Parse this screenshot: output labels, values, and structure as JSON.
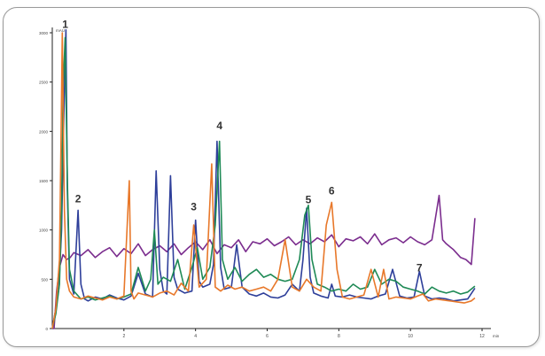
{
  "chart_data": {
    "type": "line",
    "title": "",
    "xlabel": "",
    "ylabel": "",
    "x_unit": "min",
    "y_unit": "mAU",
    "xlim": [
      0,
      12
    ],
    "ylim": [
      0,
      3000
    ],
    "x_ticks": [
      "2",
      "4",
      "6",
      "8",
      "10",
      "12"
    ],
    "x_tick_values": [
      2,
      4,
      6,
      8,
      10,
      12
    ],
    "y_ticks": [
      "0",
      "500",
      "1000",
      "1500",
      "2000",
      "2500",
      "3000"
    ],
    "y_tick_values": [
      0,
      500,
      1000,
      1500,
      2000,
      2500,
      3000
    ],
    "grid": false,
    "legend": "none",
    "peak_labels": [
      {
        "text": "1",
        "x": 0.36,
        "y": 3050
      },
      {
        "text": "2",
        "x": 0.72,
        "y": 1280
      },
      {
        "text": "3",
        "x": 3.95,
        "y": 1200
      },
      {
        "text": "4",
        "x": 4.67,
        "y": 2020
      },
      {
        "text": "5",
        "x": 7.15,
        "y": 1270
      },
      {
        "text": "6",
        "x": 7.8,
        "y": 1360
      },
      {
        "text": "7",
        "x": 10.25,
        "y": 580
      }
    ],
    "series": [
      {
        "color": "#7b2d8e",
        "x": [
          0.0,
          0.05,
          0.12,
          0.2,
          0.3,
          0.4,
          0.5,
          0.6,
          0.8,
          1.0,
          1.2,
          1.4,
          1.6,
          1.8,
          2.0,
          2.2,
          2.4,
          2.6,
          2.8,
          3.0,
          3.2,
          3.4,
          3.6,
          3.8,
          4.0,
          4.2,
          4.4,
          4.6,
          4.8,
          5.0,
          5.2,
          5.4,
          5.6,
          5.8,
          6.0,
          6.2,
          6.4,
          6.6,
          6.8,
          7.0,
          7.2,
          7.4,
          7.6,
          7.8,
          8.0,
          8.2,
          8.4,
          8.6,
          8.8,
          9.0,
          9.2,
          9.4,
          9.6,
          9.8,
          10.0,
          10.2,
          10.4,
          10.6,
          10.8,
          10.9,
          11.0,
          11.2,
          11.4,
          11.55,
          11.7,
          11.8
        ],
        "y": [
          0,
          0,
          380,
          620,
          750,
          700,
          720,
          770,
          740,
          800,
          720,
          780,
          820,
          730,
          810,
          760,
          860,
          740,
          800,
          840,
          780,
          860,
          750,
          820,
          880,
          800,
          900,
          760,
          850,
          820,
          900,
          780,
          880,
          860,
          910,
          840,
          880,
          930,
          850,
          900,
          860,
          920,
          880,
          950,
          830,
          910,
          890,
          930,
          860,
          960,
          850,
          900,
          920,
          870,
          930,
          880,
          850,
          900,
          1350,
          900,
          860,
          800,
          720,
          700,
          650,
          1120
        ]
      },
      {
        "color": "#2e3f9a",
        "x": [
          0.0,
          0.1,
          0.18,
          0.26,
          0.32,
          0.38,
          0.42,
          0.48,
          0.6,
          0.72,
          0.8,
          0.9,
          1.0,
          1.2,
          1.4,
          1.6,
          1.8,
          2.0,
          2.2,
          2.4,
          2.6,
          2.8,
          2.9,
          3.0,
          3.1,
          3.2,
          3.3,
          3.4,
          3.5,
          3.7,
          3.9,
          4.0,
          4.1,
          4.2,
          4.4,
          4.5,
          4.6,
          4.7,
          4.8,
          5.0,
          5.15,
          5.3,
          5.5,
          5.7,
          5.9,
          6.1,
          6.3,
          6.5,
          6.7,
          6.9,
          7.0,
          7.1,
          7.2,
          7.3,
          7.5,
          7.7,
          7.8,
          7.9,
          8.1,
          8.3,
          8.5,
          8.7,
          8.9,
          9.1,
          9.3,
          9.5,
          9.7,
          9.9,
          10.1,
          10.25,
          10.4,
          10.6,
          10.8,
          11.0,
          11.2,
          11.4,
          11.6,
          11.8
        ],
        "y": [
          0,
          200,
          400,
          1000,
          2100,
          3030,
          1400,
          500,
          350,
          1200,
          450,
          300,
          280,
          320,
          300,
          340,
          310,
          290,
          330,
          560,
          350,
          320,
          1600,
          600,
          380,
          350,
          1550,
          520,
          400,
          360,
          380,
          1100,
          480,
          420,
          450,
          650,
          1900,
          620,
          400,
          420,
          850,
          420,
          350,
          330,
          360,
          320,
          310,
          340,
          450,
          380,
          700,
          1220,
          520,
          360,
          330,
          310,
          450,
          330,
          320,
          340,
          320,
          310,
          300,
          330,
          350,
          600,
          330,
          310,
          320,
          580,
          330,
          300,
          310,
          300,
          280,
          290,
          300,
          410
        ]
      },
      {
        "color": "#1f8a56",
        "x": [
          0.0,
          0.1,
          0.2,
          0.26,
          0.3,
          0.36,
          0.42,
          0.48,
          0.6,
          0.8,
          1.0,
          1.2,
          1.4,
          1.6,
          1.8,
          2.0,
          2.2,
          2.4,
          2.6,
          2.75,
          2.85,
          2.95,
          3.1,
          3.3,
          3.5,
          3.7,
          3.9,
          4.05,
          4.2,
          4.4,
          4.55,
          4.67,
          4.75,
          4.9,
          5.1,
          5.3,
          5.5,
          5.7,
          5.9,
          6.1,
          6.3,
          6.5,
          6.7,
          6.9,
          7.05,
          7.15,
          7.25,
          7.4,
          7.6,
          7.8,
          8.0,
          8.2,
          8.4,
          8.6,
          8.8,
          9.0,
          9.2,
          9.4,
          9.6,
          9.8,
          10.0,
          10.2,
          10.4,
          10.6,
          10.8,
          11.0,
          11.2,
          11.4,
          11.6,
          11.8
        ],
        "y": [
          0,
          150,
          450,
          1200,
          2400,
          2950,
          1500,
          600,
          380,
          300,
          320,
          290,
          310,
          330,
          300,
          320,
          350,
          620,
          380,
          500,
          1000,
          450,
          520,
          480,
          700,
          400,
          620,
          820,
          500,
          620,
          1050,
          1900,
          700,
          500,
          620,
          480,
          550,
          600,
          520,
          550,
          500,
          480,
          500,
          700,
          1150,
          1250,
          700,
          450,
          420,
          380,
          400,
          380,
          450,
          400,
          420,
          600,
          450,
          500,
          480,
          420,
          400,
          380,
          350,
          420,
          380,
          360,
          380,
          350,
          370,
          430
        ]
      },
      {
        "color": "#e8782a",
        "x": [
          0.0,
          0.1,
          0.2,
          0.24,
          0.28,
          0.34,
          0.4,
          0.48,
          0.6,
          0.8,
          1.0,
          1.2,
          1.4,
          1.6,
          1.8,
          2.0,
          2.15,
          2.2,
          2.28,
          2.4,
          2.6,
          2.8,
          3.0,
          3.2,
          3.4,
          3.6,
          3.8,
          3.95,
          4.1,
          4.3,
          4.45,
          4.55,
          4.7,
          4.9,
          5.1,
          5.3,
          5.5,
          5.7,
          5.9,
          6.1,
          6.3,
          6.5,
          6.7,
          6.9,
          7.1,
          7.3,
          7.5,
          7.65,
          7.8,
          7.95,
          8.1,
          8.3,
          8.5,
          8.7,
          8.9,
          9.1,
          9.25,
          9.4,
          9.6,
          9.8,
          10.0,
          10.2,
          10.35,
          10.5,
          10.7,
          10.9,
          11.1,
          11.3,
          11.5,
          11.7,
          11.8
        ],
        "y": [
          0,
          200,
          700,
          1800,
          3000,
          1200,
          500,
          380,
          320,
          300,
          330,
          310,
          290,
          320,
          300,
          330,
          1500,
          380,
          300,
          360,
          340,
          320,
          360,
          380,
          340,
          460,
          380,
          1050,
          420,
          500,
          1670,
          420,
          380,
          440,
          400,
          420,
          380,
          400,
          420,
          380,
          500,
          900,
          420,
          380,
          500,
          420,
          380,
          1050,
          1280,
          600,
          320,
          300,
          320,
          340,
          600,
          320,
          600,
          300,
          320,
          310,
          300,
          330,
          350,
          280,
          300,
          290,
          280,
          270,
          260,
          280,
          310
        ]
      }
    ]
  }
}
